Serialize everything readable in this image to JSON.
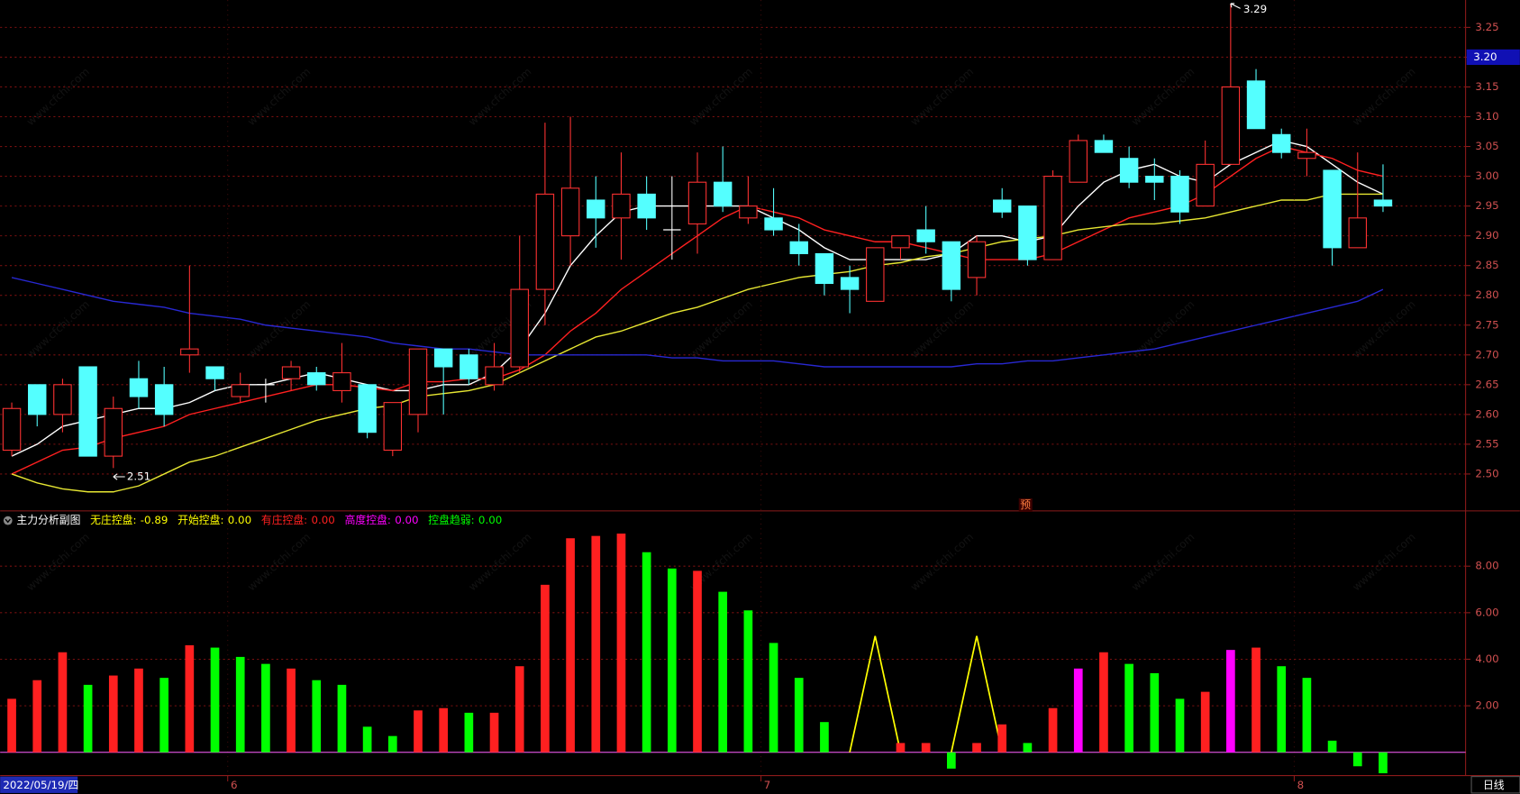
{
  "chart_data": [
    {
      "type": "candlestick",
      "categories": [
        "2022/05/19/四",
        null,
        null,
        null,
        null,
        null,
        null,
        null,
        null,
        "6",
        null,
        null,
        null,
        null,
        null,
        null,
        null,
        null,
        null,
        null,
        null,
        null,
        null,
        null,
        null,
        null,
        null,
        null,
        null,
        null,
        "7",
        null,
        null,
        null,
        null,
        null,
        null,
        null,
        null,
        null,
        null,
        null,
        null,
        null,
        null,
        null,
        null,
        null,
        null,
        null,
        null,
        "8",
        null,
        null,
        null
      ],
      "candles": {
        "open": [
          2.54,
          2.65,
          2.6,
          2.68,
          2.53,
          2.66,
          2.65,
          2.7,
          2.68,
          2.63,
          2.65,
          2.66,
          2.67,
          2.64,
          2.65,
          2.54,
          2.6,
          2.71,
          2.7,
          2.65,
          2.68,
          2.81,
          2.9,
          2.96,
          2.93,
          2.97,
          2.91,
          2.92,
          2.99,
          2.93,
          2.93,
          2.89,
          2.87,
          2.83,
          2.79,
          2.88,
          2.91,
          2.89,
          2.83,
          2.96,
          2.95,
          2.86,
          2.99,
          3.06,
          3.03,
          3.0,
          3.0,
          2.95,
          3.02,
          3.16,
          3.07,
          3.03,
          3.01,
          2.88,
          2.96
        ],
        "high": [
          2.62,
          2.65,
          2.66,
          2.68,
          2.63,
          2.69,
          2.68,
          2.85,
          2.68,
          2.67,
          2.66,
          2.69,
          2.68,
          2.72,
          2.65,
          2.62,
          2.71,
          2.71,
          2.71,
          2.72,
          2.9,
          3.09,
          3.1,
          3.0,
          3.04,
          3.0,
          3.0,
          3.04,
          3.05,
          3.0,
          2.98,
          2.92,
          2.87,
          2.85,
          2.88,
          2.9,
          2.95,
          2.89,
          2.9,
          2.98,
          2.95,
          3.01,
          3.07,
          3.07,
          3.05,
          3.03,
          3.01,
          3.06,
          3.29,
          3.18,
          3.08,
          3.08,
          3.01,
          3.04,
          3.02
        ],
        "low": [
          2.53,
          2.58,
          2.57,
          2.53,
          2.51,
          2.61,
          2.58,
          2.67,
          2.64,
          2.62,
          2.62,
          2.64,
          2.64,
          2.62,
          2.56,
          2.53,
          2.57,
          2.6,
          2.65,
          2.64,
          2.67,
          2.75,
          2.85,
          2.88,
          2.86,
          2.91,
          2.86,
          2.87,
          2.94,
          2.92,
          2.9,
          2.85,
          2.8,
          2.77,
          2.79,
          2.86,
          2.87,
          2.79,
          2.8,
          2.93,
          2.85,
          2.86,
          2.99,
          3.04,
          2.98,
          2.96,
          2.92,
          2.95,
          3.02,
          3.08,
          3.03,
          3.0,
          2.85,
          2.88,
          2.94
        ],
        "close": [
          2.61,
          2.6,
          2.65,
          2.53,
          2.61,
          2.63,
          2.6,
          2.71,
          2.66,
          2.65,
          2.65,
          2.68,
          2.65,
          2.67,
          2.57,
          2.62,
          2.71,
          2.68,
          2.66,
          2.68,
          2.81,
          2.97,
          2.98,
          2.93,
          2.97,
          2.93,
          2.91,
          2.99,
          2.95,
          2.95,
          2.91,
          2.87,
          2.82,
          2.81,
          2.88,
          2.9,
          2.89,
          2.81,
          2.89,
          2.94,
          2.86,
          3.0,
          3.06,
          3.04,
          2.99,
          2.99,
          2.94,
          3.02,
          3.15,
          3.08,
          3.04,
          3.04,
          2.88,
          2.93,
          2.95
        ],
        "up_color": "#ff3232",
        "down_color": "#54ffff",
        "flat_color": "#ffffff"
      },
      "series": [
        {
          "color": "#ffffff",
          "values": [
            2.53,
            2.55,
            2.58,
            2.59,
            2.6,
            2.61,
            2.61,
            2.62,
            2.64,
            2.65,
            2.65,
            2.66,
            2.67,
            2.66,
            2.65,
            2.64,
            2.64,
            2.65,
            2.65,
            2.67,
            2.71,
            2.77,
            2.85,
            2.9,
            2.94,
            2.95,
            2.95,
            2.95,
            2.95,
            2.95,
            2.93,
            2.91,
            2.88,
            2.86,
            2.86,
            2.86,
            2.86,
            2.87,
            2.9,
            2.9,
            2.89,
            2.9,
            2.95,
            2.99,
            3.01,
            3.02,
            3.0,
            2.99,
            3.02,
            3.04,
            3.06,
            3.05,
            3.02,
            2.99,
            2.97
          ]
        },
        {
          "color": "#ff2020",
          "values": [
            2.5,
            2.52,
            2.54,
            2.545,
            2.56,
            2.57,
            2.58,
            2.6,
            2.61,
            2.62,
            2.63,
            2.64,
            2.65,
            2.65,
            2.645,
            2.64,
            2.655,
            2.655,
            2.66,
            2.66,
            2.675,
            2.7,
            2.74,
            2.77,
            2.81,
            2.84,
            2.87,
            2.9,
            2.93,
            2.95,
            2.94,
            2.93,
            2.91,
            2.9,
            2.89,
            2.89,
            2.88,
            2.87,
            2.86,
            2.86,
            2.86,
            2.87,
            2.89,
            2.91,
            2.93,
            2.94,
            2.95,
            2.97,
            3.0,
            3.03,
            3.05,
            3.04,
            3.03,
            3.01,
            3.0
          ]
        },
        {
          "color": "#e6e632",
          "values": [
            2.5,
            2.485,
            2.475,
            2.47,
            2.47,
            2.48,
            2.5,
            2.52,
            2.53,
            2.545,
            2.56,
            2.575,
            2.59,
            2.6,
            2.61,
            2.615,
            2.63,
            2.635,
            2.64,
            2.65,
            2.67,
            2.69,
            2.71,
            2.73,
            2.74,
            2.755,
            2.77,
            2.78,
            2.795,
            2.81,
            2.82,
            2.83,
            2.835,
            2.84,
            2.85,
            2.855,
            2.865,
            2.87,
            2.88,
            2.89,
            2.895,
            2.9,
            2.91,
            2.915,
            2.92,
            2.92,
            2.925,
            2.93,
            2.94,
            2.95,
            2.96,
            2.96,
            2.97,
            2.97,
            2.97
          ]
        },
        {
          "color": "#2828d2",
          "values": [
            2.83,
            2.82,
            2.81,
            2.8,
            2.79,
            2.785,
            2.78,
            2.77,
            2.765,
            2.76,
            2.75,
            2.745,
            2.74,
            2.735,
            2.73,
            2.72,
            2.715,
            2.71,
            2.71,
            2.705,
            2.7,
            2.7,
            2.7,
            2.7,
            2.7,
            2.7,
            2.695,
            2.695,
            2.69,
            2.69,
            2.69,
            2.685,
            2.68,
            2.68,
            2.68,
            2.68,
            2.68,
            2.68,
            2.685,
            2.685,
            2.69,
            2.69,
            2.695,
            2.7,
            2.705,
            2.71,
            2.72,
            2.73,
            2.74,
            2.75,
            2.76,
            2.77,
            2.78,
            2.79,
            2.81
          ]
        }
      ],
      "ylim": [
        2.438,
        3.296
      ],
      "yticks": [
        {
          "value": 2.5,
          "label": "2.50"
        },
        2.55,
        {
          "value": 2.6,
          "label": "2.60"
        },
        2.65,
        {
          "value": 2.7,
          "label": "2.70"
        },
        2.75,
        {
          "value": 2.8,
          "label": "2.80"
        },
        2.85,
        {
          "value": 2.9,
          "label": "2.90"
        },
        2.95,
        {
          "value": 3.0,
          "label": "3.00"
        },
        3.05,
        {
          "value": 3.1,
          "label": "3.10"
        },
        3.15,
        {
          "value": 3.2,
          "label": "3.20"
        },
        3.25
      ],
      "grid": true,
      "price_tag": {
        "value": 3.2,
        "label": "3.20"
      },
      "annotations": [
        {
          "at": 48,
          "value": 3.29,
          "label": "3.29",
          "side": "high"
        },
        {
          "at": 4,
          "value": 2.51,
          "label": "2.51",
          "side": "low"
        }
      ],
      "marker": "预",
      "period": "日线",
      "watermark": "www.cfchi.com"
    },
    {
      "type": "bar",
      "title": "主力分析副图",
      "series": [
        {
          "name": "无庄控盘:",
          "color": "#ffff00",
          "current": -0.89
        },
        {
          "name": "开始控盘:",
          "color": "#ffff00",
          "style": "spike",
          "current": 0,
          "current_label": "0.00",
          "values": [
            null,
            null,
            null,
            null,
            null,
            null,
            null,
            null,
            null,
            null,
            null,
            null,
            null,
            null,
            null,
            null,
            null,
            null,
            null,
            null,
            null,
            null,
            null,
            null,
            null,
            null,
            null,
            null,
            null,
            null,
            null,
            null,
            null,
            null,
            5.0,
            null,
            null,
            null,
            5.0,
            null,
            null,
            null,
            null,
            null,
            null,
            null,
            null,
            null,
            null,
            null,
            null,
            null,
            null,
            null,
            null
          ]
        },
        {
          "name": "有庄控盘:",
          "color": "#ff2020",
          "style": "bar",
          "current": 0,
          "current_label": "0.00",
          "values": [
            2.3,
            3.1,
            4.3,
            null,
            3.3,
            3.6,
            null,
            4.6,
            null,
            null,
            null,
            3.6,
            null,
            null,
            null,
            null,
            1.8,
            1.9,
            null,
            1.7,
            3.7,
            7.2,
            9.2,
            9.3,
            9.4,
            null,
            null,
            7.8,
            null,
            null,
            null,
            null,
            null,
            null,
            null,
            0.4,
            0.4,
            null,
            0.4,
            1.2,
            null,
            1.9,
            null,
            4.3,
            null,
            null,
            null,
            2.6,
            null,
            4.5,
            null,
            null,
            null,
            null,
            null
          ]
        },
        {
          "name": "高度控盘:",
          "color": "#ff00ff",
          "style": "bar",
          "current": 0,
          "current_label": "0.00",
          "values": [
            null,
            null,
            null,
            null,
            null,
            null,
            null,
            null,
            null,
            null,
            null,
            null,
            null,
            null,
            null,
            null,
            null,
            null,
            null,
            null,
            null,
            null,
            null,
            null,
            null,
            null,
            null,
            null,
            null,
            null,
            null,
            null,
            null,
            null,
            null,
            null,
            null,
            null,
            null,
            null,
            null,
            null,
            3.6,
            null,
            null,
            null,
            null,
            null,
            4.4,
            null,
            null,
            null,
            null,
            null,
            null
          ]
        },
        {
          "name": "控盘趋弱:",
          "color": "#00ff00",
          "style": "bar",
          "current": 0,
          "current_label": "0.00",
          "values": [
            null,
            null,
            null,
            2.9,
            null,
            null,
            3.2,
            null,
            4.5,
            4.1,
            3.8,
            null,
            3.1,
            2.9,
            1.1,
            0.7,
            null,
            null,
            1.7,
            null,
            null,
            null,
            null,
            null,
            null,
            8.6,
            7.9,
            null,
            6.9,
            6.1,
            4.7,
            3.2,
            1.3,
            null,
            null,
            null,
            null,
            -0.7,
            null,
            null,
            0.4,
            null,
            null,
            null,
            3.8,
            3.4,
            2.3,
            null,
            null,
            null,
            3.7,
            3.2,
            0.5,
            -0.6,
            -0.9
          ]
        }
      ],
      "ylim": [
        -1,
        10.25
      ],
      "yticks": [
        {
          "value": 2,
          "label": "2.00"
        },
        {
          "value": 4,
          "label": "4.00"
        },
        {
          "value": 6,
          "label": "6.00"
        },
        {
          "value": 8,
          "label": "8.00"
        }
      ],
      "grid": true
    }
  ]
}
